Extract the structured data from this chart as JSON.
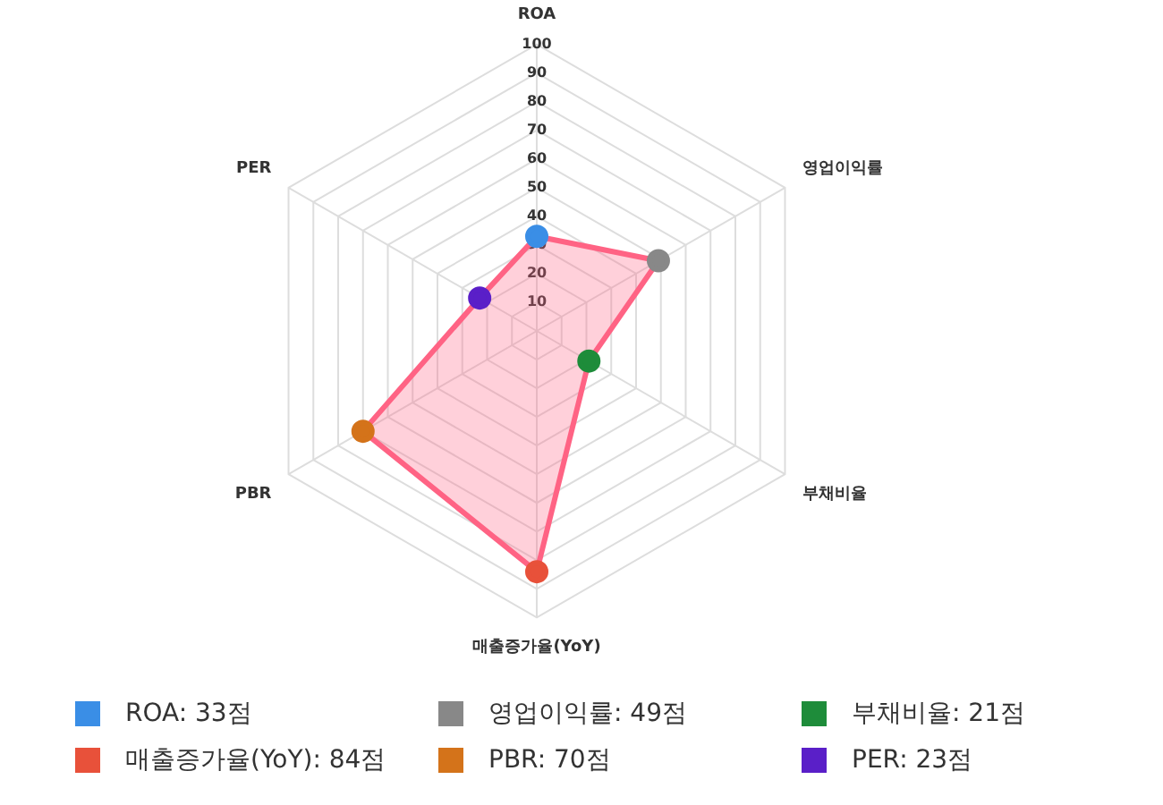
{
  "chart_data": {
    "type": "radar",
    "categories": [
      "ROA",
      "영업이익률",
      "부채비율",
      "매출증가율(YoY)",
      "PBR",
      "PER"
    ],
    "series": [
      {
        "color": "#ff6384",
        "values": [
          33,
          49,
          21,
          84,
          70,
          23
        ],
        "colors": [
          "#3a8ee6",
          "#888888",
          "#1e8c3a",
          "#e8513a",
          "#d4731a",
          "#5a1fc8"
        ]
      }
    ],
    "annotations": [
      "ROA: 33점",
      "영업이익률: 49점",
      "부채비율: 21점",
      "매출증가율(YoY): 84점",
      "PBR: 70점",
      "PER: 23점"
    ],
    "ylim": [
      0,
      100
    ],
    "yticks": [
      10,
      20,
      30,
      40,
      50,
      60,
      70,
      80,
      90,
      100
    ],
    "grid": true,
    "marker": "circle"
  }
}
